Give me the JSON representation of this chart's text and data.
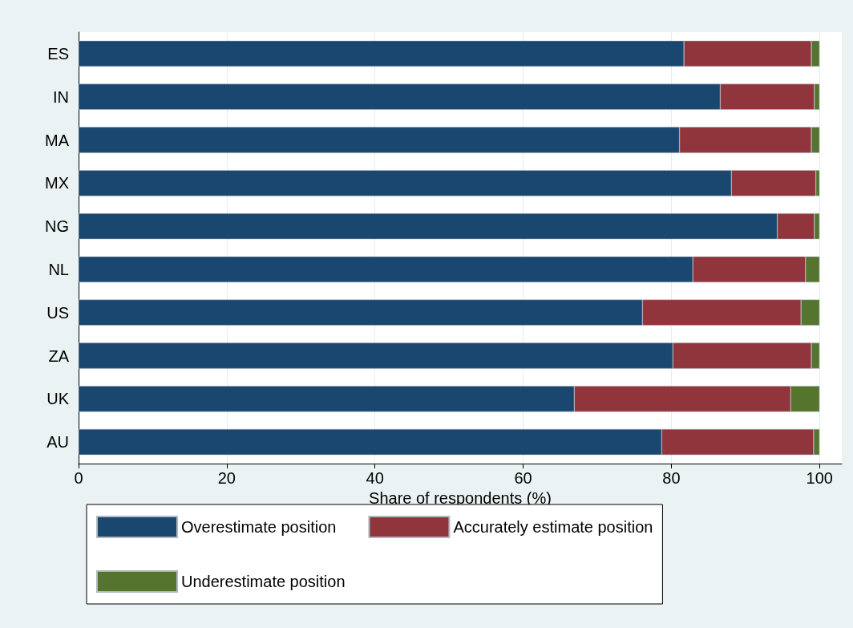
{
  "chart_data": {
    "type": "bar",
    "orientation": "horizontal",
    "stacked": true,
    "categories": [
      "ES",
      "IN",
      "MA",
      "MX",
      "NG",
      "NL",
      "US",
      "ZA",
      "UK",
      "AU"
    ],
    "series": [
      {
        "name": "Overestimate position",
        "color": "#1a476f",
        "values": [
          81.7,
          86.6,
          81.1,
          88.1,
          94.3,
          82.9,
          76.1,
          80.2,
          66.9,
          78.7
        ]
      },
      {
        "name": "Accurately estimate position",
        "color": "#90353b",
        "values": [
          17.2,
          12.7,
          17.8,
          11.4,
          5.0,
          15.2,
          21.4,
          18.7,
          29.2,
          20.5
        ]
      },
      {
        "name": "Underestimate position",
        "color": "#55752f",
        "values": [
          1.1,
          0.7,
          1.1,
          0.5,
          0.7,
          1.9,
          2.5,
          1.1,
          3.9,
          0.8
        ]
      }
    ],
    "xlabel": "Share of respondents (%)",
    "xlim": [
      0,
      103
    ],
    "xticks": [
      0,
      20,
      40,
      60,
      80,
      100
    ],
    "grid": "x",
    "legend": "bottom"
  }
}
